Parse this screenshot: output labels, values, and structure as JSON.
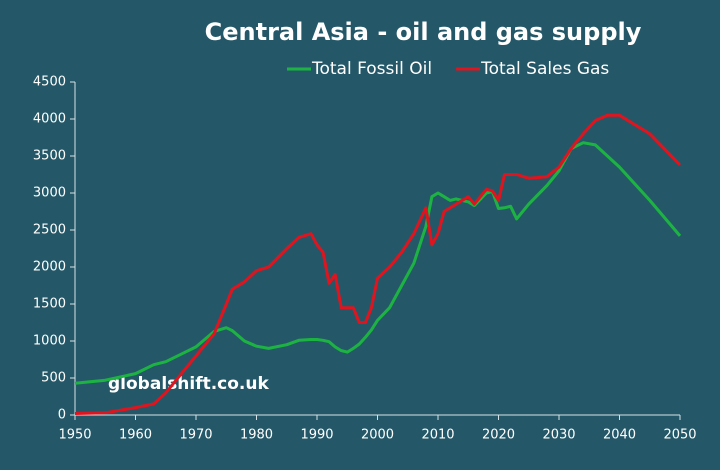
{
  "chart_data": {
    "type": "line",
    "title": "Central Asia - oil and gas supply",
    "annotation": "globalshift.co.uk",
    "x": [
      1950,
      1955,
      1960,
      1963,
      1965,
      1968,
      1970,
      1973,
      1975,
      1976,
      1978,
      1980,
      1982,
      1985,
      1987,
      1989,
      1990,
      1991,
      1992,
      1993,
      1994,
      1995,
      1996,
      1997,
      1998,
      1999,
      2000,
      2002,
      2004,
      2006,
      2008,
      2009,
      2010,
      2011,
      2012,
      2013,
      2015,
      2016,
      2018,
      2019,
      2020,
      2021,
      2022,
      2023,
      2025,
      2028,
      2030,
      2032,
      2034,
      2036,
      2038,
      2040,
      2045,
      2050
    ],
    "series": [
      {
        "name": "Total Fossil Oil",
        "color": "#1db342",
        "values": [
          430,
          470,
          560,
          680,
          720,
          840,
          920,
          1130,
          1180,
          1140,
          1000,
          930,
          900,
          950,
          1010,
          1020,
          1020,
          1010,
          990,
          920,
          870,
          850,
          900,
          960,
          1050,
          1150,
          1280,
          1450,
          1750,
          2050,
          2550,
          2950,
          3000,
          2950,
          2900,
          2920,
          2880,
          2830,
          3000,
          3020,
          2790,
          2800,
          2820,
          2650,
          2850,
          3100,
          3300,
          3600,
          3680,
          3650,
          3500,
          3350,
          2900,
          2420
        ]
      },
      {
        "name": "Total Sales Gas",
        "color": "#e0141e",
        "values": [
          20,
          30,
          100,
          150,
          300,
          600,
          800,
          1100,
          1500,
          1700,
          1800,
          1950,
          2000,
          2250,
          2400,
          2450,
          2300,
          2200,
          1780,
          1900,
          1450,
          1450,
          1450,
          1250,
          1250,
          1450,
          1850,
          2000,
          2200,
          2450,
          2800,
          2300,
          2450,
          2750,
          2800,
          2850,
          2950,
          2850,
          3050,
          3030,
          2900,
          3250,
          3250,
          3250,
          3200,
          3220,
          3350,
          3600,
          3800,
          3980,
          4050,
          4050,
          3800,
          3380
        ]
      }
    ],
    "xlim": [
      1950,
      2050
    ],
    "xticks": [
      1950,
      1960,
      1970,
      1980,
      1990,
      2000,
      2010,
      2020,
      2030,
      2040,
      2050
    ],
    "ylim": [
      0,
      4500
    ],
    "yticks": [
      0,
      500,
      1000,
      1500,
      2000,
      2500,
      3000,
      3500,
      4000,
      4500
    ],
    "grid": false,
    "legend": "top"
  }
}
